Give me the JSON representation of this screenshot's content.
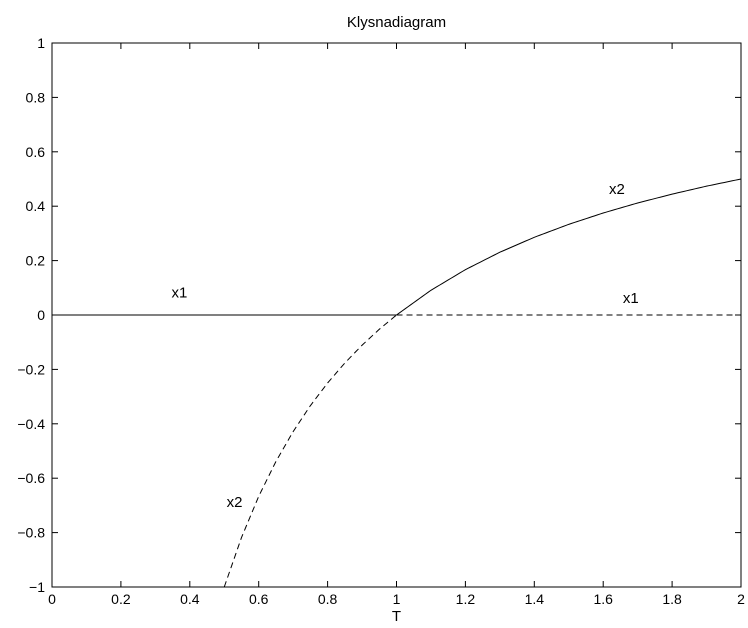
{
  "chart_data": {
    "type": "line",
    "title": "Klysnadiagram",
    "xlabel": "T",
    "ylabel": "",
    "xlim": [
      0,
      2
    ],
    "ylim": [
      -1,
      1
    ],
    "xticks": [
      "0",
      "0.2",
      "0.4",
      "0.6",
      "0.8",
      "1",
      "1.2",
      "1.4",
      "1.6",
      "1.8",
      "2"
    ],
    "yticks": [
      "1",
      "0.8",
      "0.6",
      "0.4",
      "0.2",
      "0",
      "−0.2",
      "−0.4",
      "−0.6",
      "−0.8",
      "−1"
    ],
    "grid": false,
    "series": [
      {
        "style": "solid",
        "x": [
          0,
          1
        ],
        "y": [
          0,
          0
        ]
      },
      {
        "style": "solid",
        "x": [
          1,
          1.1,
          1.2,
          1.3,
          1.4,
          1.5,
          1.6,
          1.7,
          1.8,
          1.9,
          2
        ],
        "y": [
          0,
          0.0909,
          0.1667,
          0.2308,
          0.2857,
          0.3333,
          0.375,
          0.4118,
          0.4444,
          0.4737,
          0.5
        ]
      },
      {
        "style": "dashed",
        "x": [
          1,
          2
        ],
        "y": [
          0,
          0
        ]
      },
      {
        "style": "dashed",
        "x": [
          0.5,
          0.55,
          0.6,
          0.65,
          0.7,
          0.75,
          0.8,
          0.85,
          0.9,
          0.95,
          1
        ],
        "y": [
          -1,
          -0.8182,
          -0.6667,
          -0.5385,
          -0.4286,
          -0.3333,
          -0.25,
          -0.1765,
          -0.1111,
          -0.0526,
          0
        ]
      }
    ],
    "annotations": [
      {
        "text": "x1",
        "x": 0.37,
        "y": 0.065
      },
      {
        "text": "x2",
        "x": 1.64,
        "y": 0.445
      },
      {
        "text": "x1",
        "x": 1.68,
        "y": 0.045
      },
      {
        "text": "x2",
        "x": 0.53,
        "y": -0.705
      }
    ]
  }
}
